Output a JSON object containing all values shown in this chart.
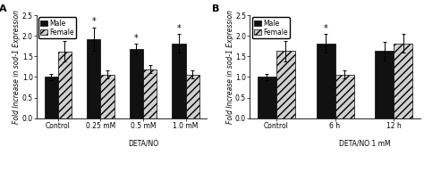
{
  "panel_A": {
    "title": "A",
    "categories": [
      "Control",
      "0.25 mM",
      "0.5 mM",
      "1.0 mM"
    ],
    "male_values": [
      1.0,
      1.92,
      1.68,
      1.82
    ],
    "female_values": [
      1.62,
      1.06,
      1.19,
      1.06
    ],
    "male_errors": [
      0.08,
      0.28,
      0.12,
      0.22
    ],
    "female_errors": [
      0.25,
      0.1,
      0.1,
      0.1
    ],
    "male_stars": [
      false,
      true,
      true,
      true
    ],
    "xlabel": "DETA/NO",
    "xlabel_start": 1,
    "xlabel_end": 3,
    "ylabel": "Fold Increase in sod-1 Expression",
    "ylim": [
      0.0,
      2.5
    ],
    "yticks": [
      0.0,
      0.5,
      1.0,
      1.5,
      2.0,
      2.5
    ]
  },
  "panel_B": {
    "title": "B",
    "categories": [
      "Control",
      "6 h",
      "12 h"
    ],
    "male_values": [
      1.0,
      1.82,
      1.63
    ],
    "female_values": [
      1.63,
      1.06,
      1.82
    ],
    "male_errors": [
      0.07,
      0.22,
      0.22
    ],
    "female_errors": [
      0.25,
      0.1,
      0.22
    ],
    "male_stars": [
      false,
      true,
      false
    ],
    "xlabel": "DETA/NO 1 mM",
    "xlabel_start": 1,
    "xlabel_end": 2,
    "ylabel": "Fold Increase in sod-1 Expression",
    "ylim": [
      0.0,
      2.5
    ],
    "yticks": [
      0.0,
      0.5,
      1.0,
      1.5,
      2.0,
      2.5
    ]
  },
  "bar_width": 0.32,
  "male_color": "#111111",
  "female_color": "#d0d0d0",
  "female_hatch": "////",
  "background_color": "#ffffff",
  "legend_male": "Male",
  "legend_female": "Female",
  "fontsize_label": 5.5,
  "fontsize_tick": 5.5,
  "fontsize_title": 8,
  "fontsize_star": 7,
  "fontsize_legend": 5.5
}
